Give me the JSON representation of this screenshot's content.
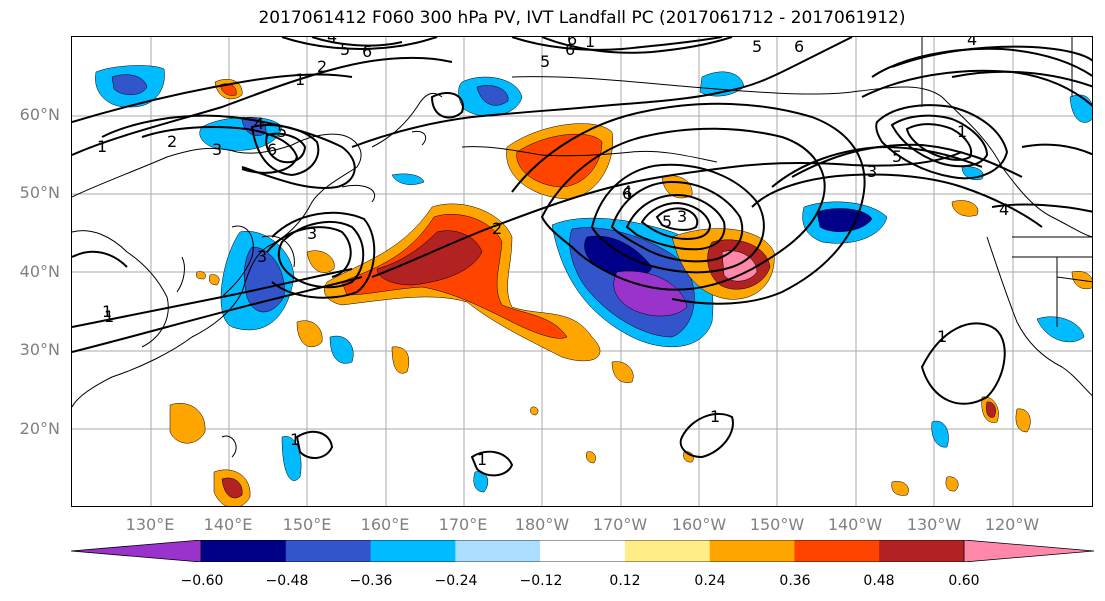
{
  "title": "2017061412 F060 300 hPa PV, IVT Landfall PC (2017061712 - 2017061912)",
  "lat_labels": [
    "60°N",
    "50°N",
    "40°N",
    "30°N",
    "20°N"
  ],
  "lon_labels": [
    "130°E",
    "140°E",
    "150°E",
    "160°E",
    "170°E",
    "180°W",
    "170°W",
    "160°W",
    "150°W",
    "140°W",
    "130°W",
    "120°W"
  ],
  "colorbar": {
    "colors": [
      "#9933cc",
      "#000088",
      "#3355cc",
      "#00bbff",
      "#aaddff",
      "#ffffff",
      "#ffee88",
      "#ffa500",
      "#ff4400",
      "#b22222",
      "#ff88aa"
    ],
    "ticks": [
      "−0.60",
      "−0.48",
      "−0.36",
      "−0.24",
      "−0.12",
      "0.12",
      "0.24",
      "0.36",
      "0.48",
      "0.60"
    ]
  },
  "contour_labels": [
    "1",
    "2",
    "3",
    "4",
    "5",
    "6",
    "1",
    "2",
    "3",
    "4",
    "5",
    "6",
    "3",
    "1",
    "2",
    "3",
    "4",
    "5",
    "6",
    "1",
    "1",
    "1",
    "1",
    "1",
    "1",
    "3",
    "4",
    "5",
    "6",
    "1",
    "4",
    "5",
    "6",
    "6",
    "5"
  ]
}
